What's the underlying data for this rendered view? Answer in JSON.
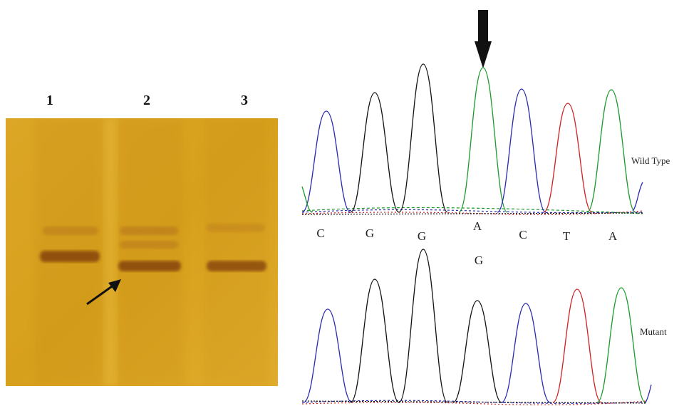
{
  "gel": {
    "lanes": [
      "1",
      "2",
      "3"
    ],
    "background_color": "#d9a21e",
    "band_color": "#8a4a10"
  },
  "chromatogram": {
    "wild_type_label": "Wild Type",
    "mutant_label": "Mutant",
    "bases": [
      "C",
      "G",
      "G",
      "A",
      "C",
      "T",
      "A"
    ],
    "mutant_base": "G",
    "base_colors": {
      "A": "#1a9a2a",
      "C": "#2a2ab0",
      "G": "#111111",
      "T": "#d02020"
    },
    "wild_type_peaks": [
      "C",
      "G",
      "G",
      "A",
      "C",
      "T",
      "A"
    ],
    "mutant_peaks": [
      "C",
      "G",
      "G",
      "G",
      "C",
      "T",
      "A"
    ]
  }
}
